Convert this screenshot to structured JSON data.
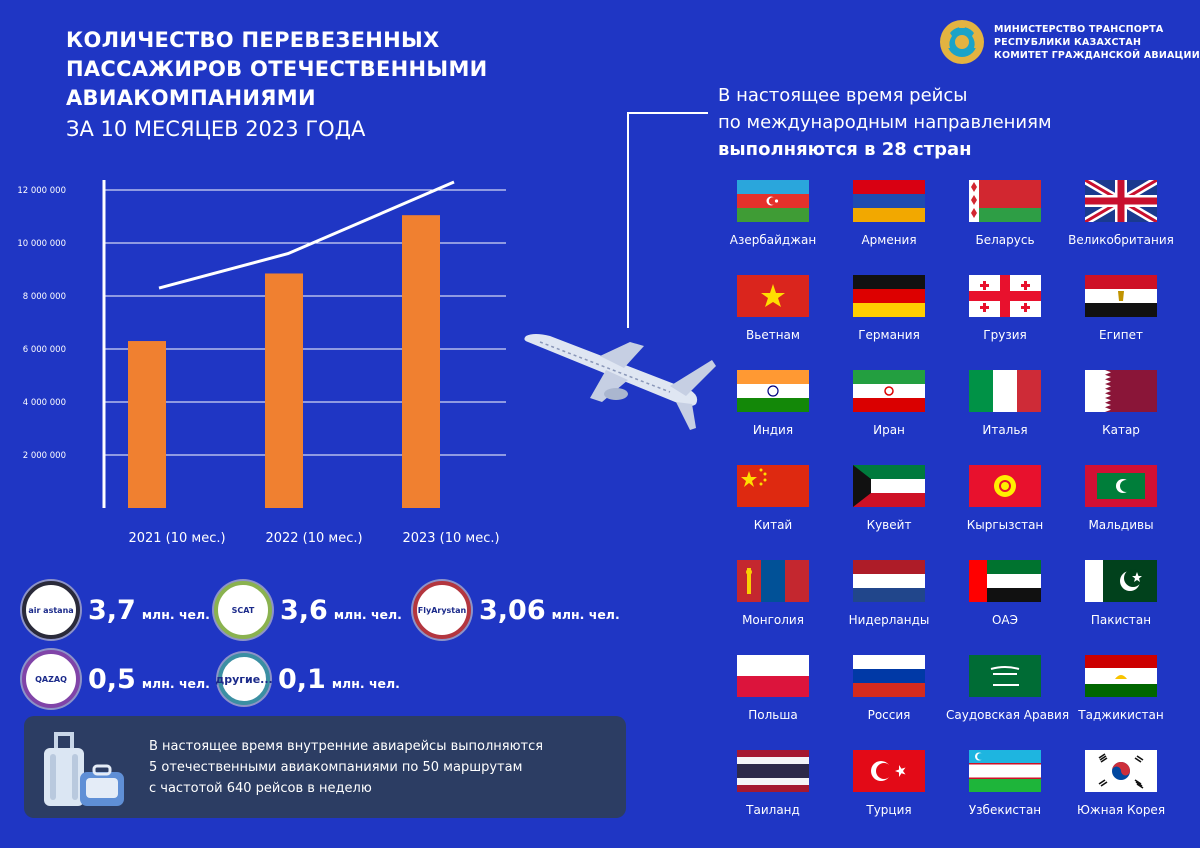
{
  "title": {
    "line1": "КОЛИЧЕСТВО ПЕРЕВЕЗЕННЫХ",
    "line2": "ПАССАЖИРОВ ОТЕЧЕСТВЕННЫМИ",
    "line3": "АВИАКОМПАНИЯМИ",
    "line4": "ЗА 10 МЕСЯЦЕВ 2023 ГОДА"
  },
  "ministry": {
    "line1": "МИНИСТЕРСТВО ТРАНСПОРТА",
    "line2": "РЕСПУБЛИКИ КАЗАХСТАН",
    "line3": "КОМИТЕТ ГРАЖДАНСКОЙ АВИАЦИИ"
  },
  "international": {
    "line1": "В настоящее время рейсы",
    "line2": "по международным направлениям",
    "line3": "выполняются в 28 стран"
  },
  "chart_data": {
    "type": "bar",
    "categories": [
      "2021 (10 мес.)",
      "2022 (10 мес.)",
      "2023 (10 мес.)"
    ],
    "values": [
      6300000,
      8850000,
      11050000
    ],
    "trend_values": [
      8300000,
      9600000,
      12300000
    ],
    "yticks": [
      "2 000 000",
      "4 000 000",
      "6 000 000",
      "8 000 000",
      "10 000 000",
      "12 000 000"
    ],
    "ylim": [
      0,
      12000000
    ],
    "grid": true,
    "colors": {
      "bar": "#f08030",
      "trend": "#ffffff",
      "grid": "#ffffff"
    }
  },
  "airlines": [
    {
      "logo": "air astana",
      "value": "3,7",
      "unit": "млн. чел."
    },
    {
      "logo": "SCAT",
      "value": "3,6",
      "unit": "млн. чел."
    },
    {
      "logo": "FlyArystan",
      "value": "3,06",
      "unit": "млн. чел."
    },
    {
      "logo": "QAZAQ",
      "value": "0,5",
      "unit": "млн. чел."
    },
    {
      "logo": "другие...",
      "value": "0,1",
      "unit": "млн. чел."
    }
  ],
  "domestic": {
    "line1": "В настоящее время внутренние авиарейсы выполняются",
    "line2": "5 отечественными авиакомпаниями по 50 маршрутам",
    "line3": "с частотой 640 рейсов в неделю"
  },
  "countries": [
    "Азербайджан",
    "Армения",
    "Беларусь",
    "Великобритания",
    "Вьетнам",
    "Германия",
    "Грузия",
    "Египет",
    "Индия",
    "Иран",
    "Италья",
    "Катар",
    "Китай",
    "Кувейт",
    "Кыргызстан",
    "Мальдивы",
    "Монголия",
    "Нидерланды",
    "ОАЭ",
    "Пакистан",
    "Польша",
    "Россия",
    "Саудовская Аравия",
    "Таджикистан",
    "Таиланд",
    "Турция",
    "Узбекистан",
    "Южная Корея"
  ]
}
